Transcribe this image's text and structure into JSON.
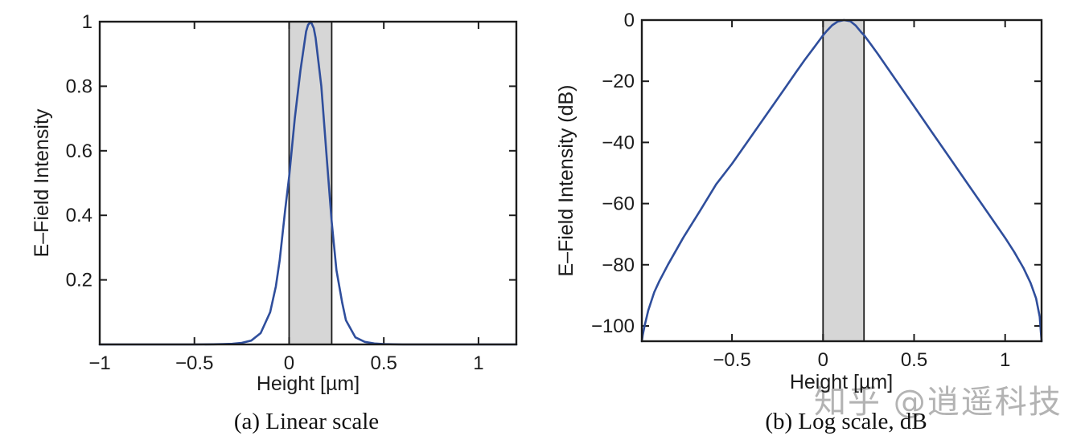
{
  "figure": {
    "background": "#ffffff",
    "watermark": {
      "text": "知乎 @逍遥科技",
      "color": "#b3b3b3"
    }
  },
  "chart_data": [
    {
      "type": "line",
      "caption": "(a) Linear scale",
      "xlabel": "Height [µm]",
      "ylabel": "E–Field Intensity",
      "xlim": [
        -1,
        1.2
      ],
      "ylim": [
        0,
        1
      ],
      "xticks": [
        -1,
        -0.5,
        0,
        0.5,
        1
      ],
      "xtick_labels": [
        "−1",
        "−0.5",
        "0",
        "0.5",
        "1"
      ],
      "yticks": [
        0.2,
        0.4,
        0.6,
        0.8,
        1
      ],
      "ytick_labels": [
        "0.2",
        "0.4",
        "0.6",
        "0.8",
        "1"
      ],
      "grid": false,
      "legend": null,
      "line_color": "#2f4e9c",
      "shaded_band": {
        "x_start": 0,
        "x_end": 0.225,
        "fill": "#d6d6d6",
        "edge_color": "#1a1a1a"
      },
      "series": [
        {
          "name": "E-field intensity (linear)",
          "points": [
            [
              -1,
              0
            ],
            [
              -0.6,
              0
            ],
            [
              -0.5,
              0
            ],
            [
              -0.4,
              0.0005
            ],
            [
              -0.35,
              0.001
            ],
            [
              -0.3,
              0.002
            ],
            [
              -0.25,
              0.005
            ],
            [
              -0.2,
              0.012
            ],
            [
              -0.15,
              0.035
            ],
            [
              -0.1,
              0.1
            ],
            [
              -0.07,
              0.18
            ],
            [
              -0.05,
              0.26
            ],
            [
              -0.02,
              0.42
            ],
            [
              0,
              0.52
            ],
            [
              0.03,
              0.7
            ],
            [
              0.06,
              0.85
            ],
            [
              0.09,
              0.97
            ],
            [
              0.1,
              0.99
            ],
            [
              0.115,
              1.0
            ],
            [
              0.13,
              0.98
            ],
            [
              0.14,
              0.95
            ],
            [
              0.17,
              0.8
            ],
            [
              0.2,
              0.57
            ],
            [
              0.225,
              0.38
            ],
            [
              0.25,
              0.23
            ],
            [
              0.28,
              0.13
            ],
            [
              0.3,
              0.075
            ],
            [
              0.35,
              0.022
            ],
            [
              0.4,
              0.008
            ],
            [
              0.45,
              0.003
            ],
            [
              0.5,
              0.001
            ],
            [
              0.6,
              0
            ],
            [
              0.8,
              0
            ],
            [
              1,
              0
            ],
            [
              1.2,
              0
            ]
          ]
        }
      ]
    },
    {
      "type": "line",
      "caption": "(b) Log scale, dB",
      "xlabel": "Height [µm]",
      "ylabel": "E–Field Intensity (dB)",
      "xlim": [
        -0.995,
        1.2
      ],
      "ylim": [
        -105,
        0
      ],
      "xticks": [
        -0.5,
        0,
        0.5,
        1
      ],
      "xtick_labels": [
        "−0.5",
        "0",
        "0.5",
        "1"
      ],
      "yticks": [
        0,
        -20,
        -40,
        -60,
        -80,
        -100
      ],
      "ytick_labels": [
        "0",
        "−20",
        "−40",
        "−60",
        "−80",
        "−100"
      ],
      "grid": false,
      "legend": null,
      "line_color": "#2f4e9c",
      "shaded_band": {
        "x_start": 0,
        "x_end": 0.225,
        "fill": "#d6d6d6",
        "edge_color": "#1a1a1a"
      },
      "series": [
        {
          "name": "E-field intensity (dB)",
          "points": [
            [
              -0.995,
              -105
            ],
            [
              -0.99,
              -103
            ],
            [
              -0.98,
              -100
            ],
            [
              -0.96,
              -95
            ],
            [
              -0.927,
              -89
            ],
            [
              -0.9,
              -85.5
            ],
            [
              -0.852,
              -80
            ],
            [
              -0.768,
              -71.2
            ],
            [
              -0.675,
              -62.3
            ],
            [
              -0.587,
              -53.7
            ],
            [
              -0.5,
              -47
            ],
            [
              -0.4,
              -38.5
            ],
            [
              -0.3,
              -30
            ],
            [
              -0.2,
              -21.5
            ],
            [
              -0.15,
              -17.2
            ],
            [
              -0.1,
              -13
            ],
            [
              -0.05,
              -9
            ],
            [
              0,
              -5
            ],
            [
              0.02,
              -3.6
            ],
            [
              0.05,
              -1.7
            ],
            [
              0.08,
              -0.5
            ],
            [
              0.115,
              0
            ],
            [
              0.15,
              -0.4
            ],
            [
              0.18,
              -1.8
            ],
            [
              0.21,
              -4
            ],
            [
              0.225,
              -4.9
            ],
            [
              0.25,
              -6.9
            ],
            [
              0.3,
              -11
            ],
            [
              0.35,
              -15.3
            ],
            [
              0.4,
              -19.6
            ],
            [
              0.5,
              -28.2
            ],
            [
              0.6,
              -36.8
            ],
            [
              0.7,
              -45.4
            ],
            [
              0.8,
              -54
            ],
            [
              0.9,
              -62.6
            ],
            [
              1,
              -71.2
            ],
            [
              1.05,
              -75.8
            ],
            [
              1.1,
              -81
            ],
            [
              1.14,
              -86
            ],
            [
              1.17,
              -91
            ],
            [
              1.19,
              -97
            ],
            [
              1.2,
              -105
            ]
          ]
        }
      ]
    }
  ]
}
